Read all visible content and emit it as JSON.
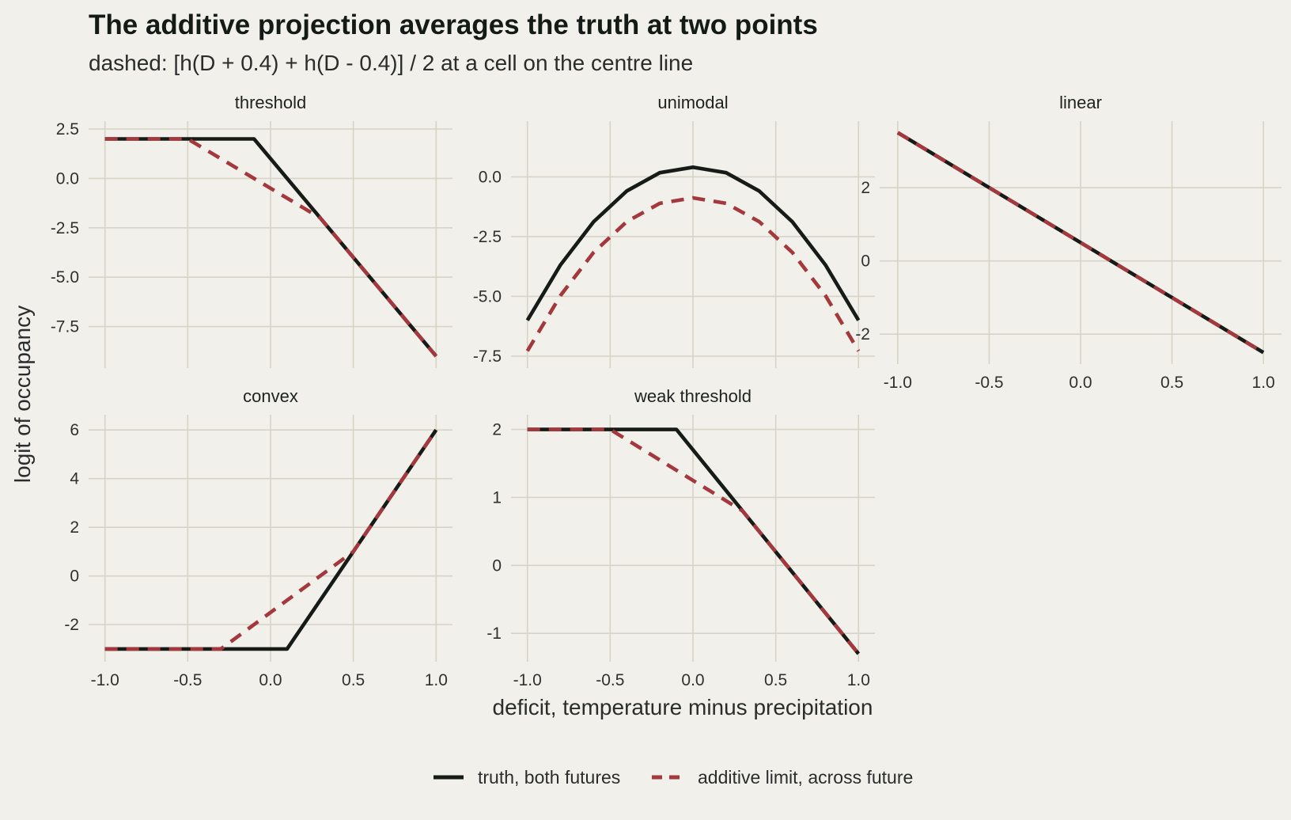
{
  "title": "The additive projection averages the truth at two points",
  "subtitle": "dashed: [h(D + 0.4) + h(D - 0.4)] / 2 at a cell on the centre line",
  "colors": {
    "background": "#f2f0ea",
    "grid": "#d6d3c7",
    "truth": "#161b17",
    "additive": "#a3383d"
  },
  "legend": {
    "truth_label": "truth, both futures",
    "additive_label": "additive limit, across future"
  },
  "chart_data": {
    "type": "line",
    "title": "The additive projection averages the truth at two points",
    "subtitle": "dashed: [h(D + 0.4) + h(D - 0.4)] / 2 at a cell on the centre line",
    "xlabel": "deficit, temperature minus precipitation",
    "ylabel": "logit of occupancy",
    "xlim": [
      -1.0,
      1.0
    ],
    "x_ticks": [
      "-1.0",
      "-0.5",
      "0.0",
      "0.5",
      "1.0"
    ],
    "grid": true,
    "legend_position": "bottom",
    "series_names": [
      "truth, both futures",
      "additive limit, across future"
    ],
    "panels": [
      {
        "name": "threshold",
        "ylim": [
          -9.0,
          2.5
        ],
        "y_ticks": [
          2.5,
          0.0,
          -2.5,
          -5.0,
          -7.5
        ],
        "y_tick_labels": [
          "2.5",
          "0.0",
          "-2.5",
          "-5.0",
          "-7.5"
        ],
        "series": [
          {
            "style": "solid",
            "x": [
              -1.0,
              -0.1,
              1.0
            ],
            "y": [
              2.0,
              2.0,
              -9.0
            ]
          },
          {
            "style": "dashed",
            "x": [
              -1.0,
              -0.5,
              0.3,
              1.0
            ],
            "y": [
              2.0,
              2.0,
              -2.0,
              -9.0
            ]
          }
        ]
      },
      {
        "name": "unimodal",
        "ylim": [
          -7.5,
          2.0
        ],
        "y_ticks": [
          0.0,
          -2.5,
          -5.0,
          -7.5
        ],
        "y_tick_labels": [
          "0.0",
          "-2.5",
          "-5.0",
          "-7.5"
        ],
        "series": [
          {
            "style": "solid",
            "x": [
              -1.0,
              -0.8,
              -0.6,
              -0.4,
              -0.2,
              0.0,
              0.2,
              0.4,
              0.6,
              0.8,
              1.0
            ],
            "y": [
              -6.0,
              -3.68,
              -1.88,
              -0.592,
              0.172,
              0.4,
              0.172,
              -0.592,
              -1.88,
              -3.68,
              -6.0
            ]
          },
          {
            "style": "dashed",
            "x": [
              -1.0,
              -0.8,
              -0.6,
              -0.4,
              -0.2,
              0.0,
              0.2,
              0.4,
              0.6,
              0.8,
              1.0
            ],
            "y": [
              -7.28,
              -4.96,
              -3.16,
              -1.872,
              -1.108,
              -0.88,
              -1.108,
              -1.872,
              -3.16,
              -4.96,
              -7.28
            ]
          }
        ]
      },
      {
        "name": "linear",
        "ylim": [
          -2.6,
          3.6
        ],
        "y_ticks": [
          2,
          0,
          -2
        ],
        "y_tick_labels": [
          "2",
          "0",
          "-2"
        ],
        "series": [
          {
            "style": "solid",
            "x": [
              -1.0,
              1.0
            ],
            "y": [
              3.5,
              -2.5
            ]
          },
          {
            "style": "dashed",
            "x": [
              -1.0,
              1.0
            ],
            "y": [
              3.5,
              -2.5
            ]
          }
        ]
      },
      {
        "name": "convex",
        "ylim": [
          -3.2,
          6.3
        ],
        "y_ticks": [
          6,
          4,
          2,
          0,
          -2
        ],
        "y_tick_labels": [
          "6",
          "4",
          "2",
          "0",
          "-2"
        ],
        "series": [
          {
            "style": "solid",
            "x": [
              -1.0,
              0.1,
              1.0
            ],
            "y": [
              -3.0,
              -3.0,
              6.0
            ]
          },
          {
            "style": "dashed",
            "x": [
              -1.0,
              -0.3,
              0.5,
              1.0
            ],
            "y": [
              -3.0,
              -3.0,
              1.0,
              6.0
            ]
          }
        ]
      },
      {
        "name": "weak threshold",
        "ylim": [
          -1.3,
          2.1
        ],
        "y_ticks": [
          2,
          1,
          0,
          -1
        ],
        "y_tick_labels": [
          "2",
          "1",
          "0",
          "-1"
        ],
        "series": [
          {
            "style": "solid",
            "x": [
              -1.0,
              -0.1,
              1.0
            ],
            "y": [
              2.0,
              2.0,
              -1.3
            ]
          },
          {
            "style": "dashed",
            "x": [
              -1.0,
              -0.5,
              0.3,
              1.0
            ],
            "y": [
              2.0,
              2.0,
              0.8,
              -1.3
            ]
          }
        ]
      }
    ]
  }
}
